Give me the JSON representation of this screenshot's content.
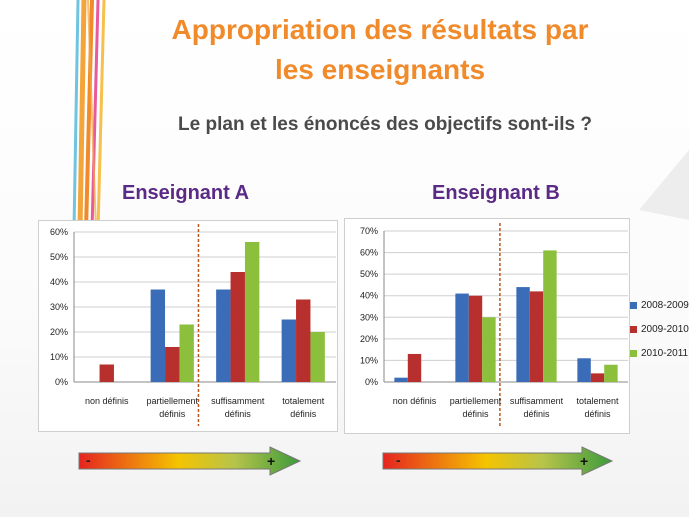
{
  "slide": {
    "title_line1": "Appropriation des résultats par",
    "title_line2": "les enseignants",
    "subtitle": "Le plan et les énoncés des objectifs sont-ils ?"
  },
  "colors": {
    "y2008": "#3a6cb8",
    "y2009": "#b8302e",
    "y2010": "#8cbf3c",
    "title": "#f08a2a",
    "panel": "#5b2a86"
  },
  "chart_data": [
    {
      "type": "bar",
      "title": "Enseignant A",
      "categories": [
        [
          "non définis"
        ],
        [
          "partiellement",
          "définis"
        ],
        [
          "suffisamment",
          "définis"
        ],
        [
          "totalement",
          "définis"
        ]
      ],
      "series": [
        {
          "name": "2008-2009",
          "values": [
            0,
            37,
            37,
            25
          ]
        },
        {
          "name": "2009-2010",
          "values": [
            7,
            14,
            44,
            33
          ]
        },
        {
          "name": "2010-2011",
          "values": [
            0,
            23,
            56,
            20
          ]
        }
      ],
      "yticks": [
        "0%",
        "10%",
        "20%",
        "30%",
        "40%",
        "50%",
        "60%"
      ],
      "ylim": [
        0,
        60
      ],
      "grid": true,
      "legend": "none"
    },
    {
      "type": "bar",
      "title": "Enseignant B",
      "categories": [
        [
          "non définis"
        ],
        [
          "partiellement",
          "définis"
        ],
        [
          "suffisamment",
          "définis"
        ],
        [
          "totalement",
          "définis"
        ]
      ],
      "series": [
        {
          "name": "2008-2009",
          "values": [
            2,
            41,
            44,
            11
          ]
        },
        {
          "name": "2009-2010",
          "values": [
            13,
            40,
            42,
            4
          ]
        },
        {
          "name": "2010-2011",
          "values": [
            0,
            30,
            61,
            8
          ]
        }
      ],
      "yticks": [
        "0%",
        "10%",
        "20%",
        "30%",
        "40%",
        "50%",
        "60%",
        "70%"
      ],
      "ylim": [
        0,
        70
      ],
      "grid": true,
      "legend": "right"
    }
  ],
  "scale": {
    "minus": "-",
    "plus": "+"
  }
}
